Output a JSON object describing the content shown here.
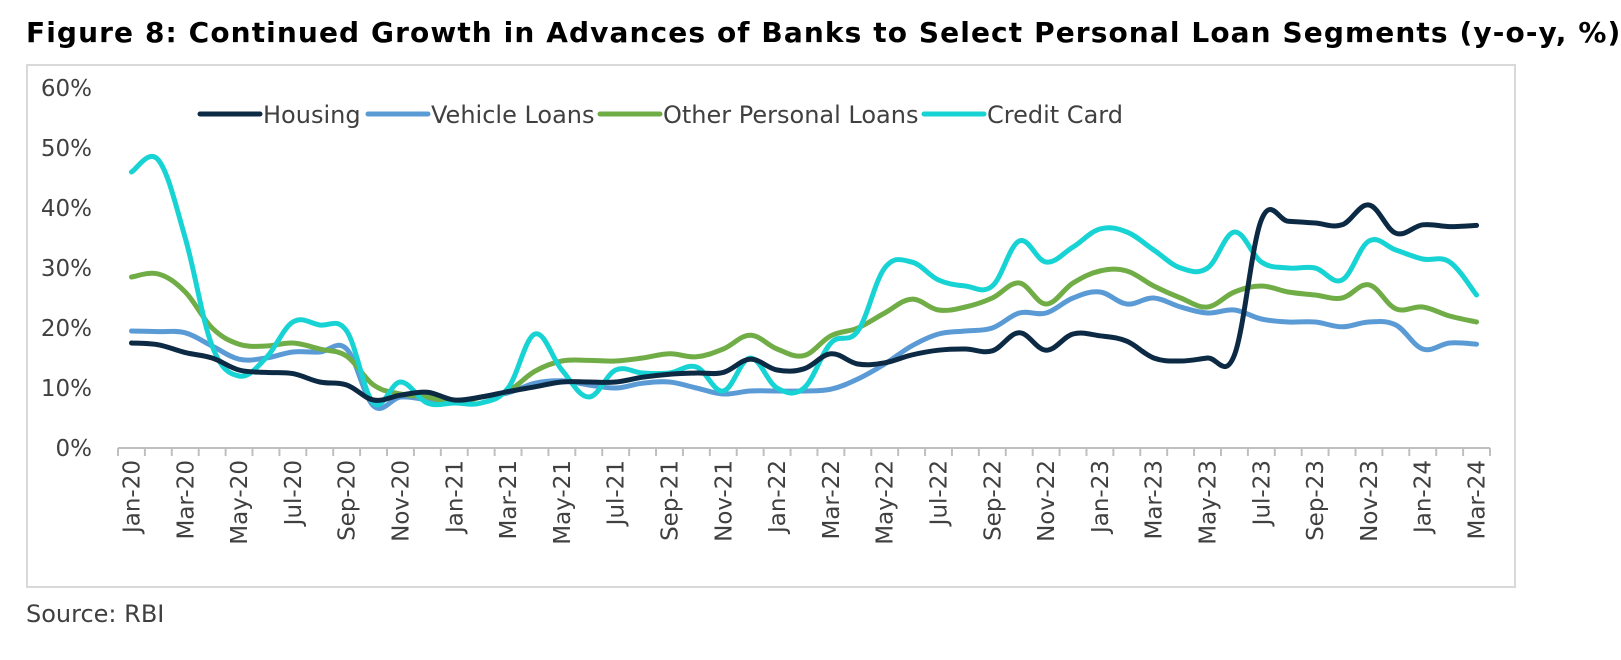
{
  "title": "Figure 8: Continued Growth in Advances of Banks to Select Personal Loan Segments (y-o-y, %)",
  "source": "Source: RBI",
  "chart_data": {
    "type": "line",
    "title": "Figure 8: Continued Growth in Advances of Banks to Select Personal Loan Segments (y-o-y, %)",
    "xlabel": "",
    "ylabel": "",
    "ylim": [
      0,
      60
    ],
    "yticks": [
      0,
      10,
      20,
      30,
      40,
      50,
      60
    ],
    "ytick_labels": [
      "0%",
      "10%",
      "20%",
      "30%",
      "40%",
      "50%",
      "60%"
    ],
    "grid": false,
    "legend_position": "top",
    "x": [
      "Jan-20",
      "Feb-20",
      "Mar-20",
      "Apr-20",
      "May-20",
      "Jun-20",
      "Jul-20",
      "Aug-20",
      "Sep-20",
      "Oct-20",
      "Nov-20",
      "Dec-20",
      "Jan-21",
      "Feb-21",
      "Mar-21",
      "Apr-21",
      "May-21",
      "Jun-21",
      "Jul-21",
      "Aug-21",
      "Sep-21",
      "Oct-21",
      "Nov-21",
      "Dec-21",
      "Jan-22",
      "Feb-22",
      "Mar-22",
      "Apr-22",
      "May-22",
      "Jun-22",
      "Jul-22",
      "Aug-22",
      "Sep-22",
      "Oct-22",
      "Nov-22",
      "Dec-22",
      "Jan-23",
      "Feb-23",
      "Mar-23",
      "Apr-23",
      "May-23",
      "Jun-23",
      "Jul-23",
      "Aug-23",
      "Sep-23",
      "Oct-23",
      "Nov-23",
      "Dec-23",
      "Jan-24",
      "Feb-24",
      "Mar-24"
    ],
    "x_tick_labels": [
      "Jan-20",
      "Mar-20",
      "May-20",
      "Jul-20",
      "Sep-20",
      "Nov-20",
      "Jan-21",
      "Mar-21",
      "May-21",
      "Jul-21",
      "Sep-21",
      "Nov-21",
      "Jan-22",
      "Mar-22",
      "May-22",
      "Jul-22",
      "Sep-22",
      "Nov-22",
      "Jan-23",
      "Mar-23",
      "May-23",
      "Jul-23",
      "Sep-23",
      "Nov-23",
      "Jan-24",
      "Mar-24"
    ],
    "series": [
      {
        "name": "Housing",
        "color": "#0d2a45",
        "values": [
          17.5,
          17.2,
          15.9,
          15.0,
          13.0,
          12.6,
          12.4,
          11.0,
          10.5,
          8.0,
          8.8,
          9.3,
          8.0,
          8.5,
          9.4,
          10.2,
          11.0,
          11.0,
          11.0,
          11.8,
          12.3,
          12.5,
          12.6,
          14.8,
          13.0,
          13.2,
          15.7,
          14.0,
          14.2,
          15.5,
          16.3,
          16.5,
          16.2,
          19.2,
          16.3,
          19.0,
          18.7,
          17.8,
          15.0,
          14.5,
          15.0,
          15.5,
          38.0,
          37.8,
          37.5,
          37.2,
          40.5,
          35.8,
          37.2,
          36.9,
          37.1
        ]
      },
      {
        "name": "Vehicle Loans",
        "color": "#5b9bd5",
        "values": [
          19.5,
          19.4,
          19.2,
          17.0,
          14.8,
          15.0,
          16.0,
          16.0,
          16.5,
          7.0,
          8.5,
          8.0,
          7.5,
          8.5,
          9.2,
          10.8,
          11.2,
          10.5,
          10.0,
          10.8,
          11.0,
          10.0,
          9.0,
          9.5,
          9.5,
          9.5,
          9.8,
          11.5,
          14.0,
          17.0,
          19.0,
          19.5,
          20.0,
          22.5,
          22.5,
          25.0,
          26.0,
          24.0,
          25.0,
          23.5,
          22.5,
          23.0,
          21.5,
          21.0,
          21.0,
          20.2,
          21.0,
          20.5,
          16.5,
          17.5,
          17.3
        ]
      },
      {
        "name": "Other Personal Loans",
        "color": "#70ad47",
        "values": [
          28.5,
          29.0,
          26.0,
          20.0,
          17.3,
          17.0,
          17.5,
          16.5,
          15.3,
          10.5,
          9.0,
          8.5,
          7.5,
          8.5,
          9.5,
          12.8,
          14.5,
          14.6,
          14.5,
          15.0,
          15.7,
          15.2,
          16.5,
          18.8,
          16.5,
          15.4,
          18.7,
          20.0,
          22.5,
          24.8,
          23.0,
          23.5,
          25.0,
          27.5,
          24.0,
          27.5,
          29.5,
          29.5,
          27.0,
          25.0,
          23.5,
          26.0,
          27.0,
          26.0,
          25.5,
          25.0,
          27.2,
          23.2,
          23.5,
          22.0,
          21.0
        ]
      },
      {
        "name": "Credit Card",
        "color": "#17d3d3",
        "values": [
          46.0,
          48.0,
          35.0,
          17.0,
          12.0,
          15.0,
          21.0,
          20.5,
          19.5,
          7.5,
          11.0,
          7.5,
          7.5,
          7.5,
          10.0,
          19.0,
          13.0,
          8.5,
          13.0,
          12.5,
          12.5,
          13.5,
          9.5,
          15.0,
          10.0,
          10.0,
          17.5,
          19.5,
          30.0,
          31.0,
          28.0,
          27.0,
          27.0,
          34.5,
          31.0,
          33.5,
          36.5,
          36.0,
          33.0,
          30.0,
          30.0,
          36.0,
          31.0,
          30.0,
          30.0,
          28.0,
          34.5,
          33.0,
          31.5,
          31.0,
          25.5
        ]
      }
    ]
  }
}
